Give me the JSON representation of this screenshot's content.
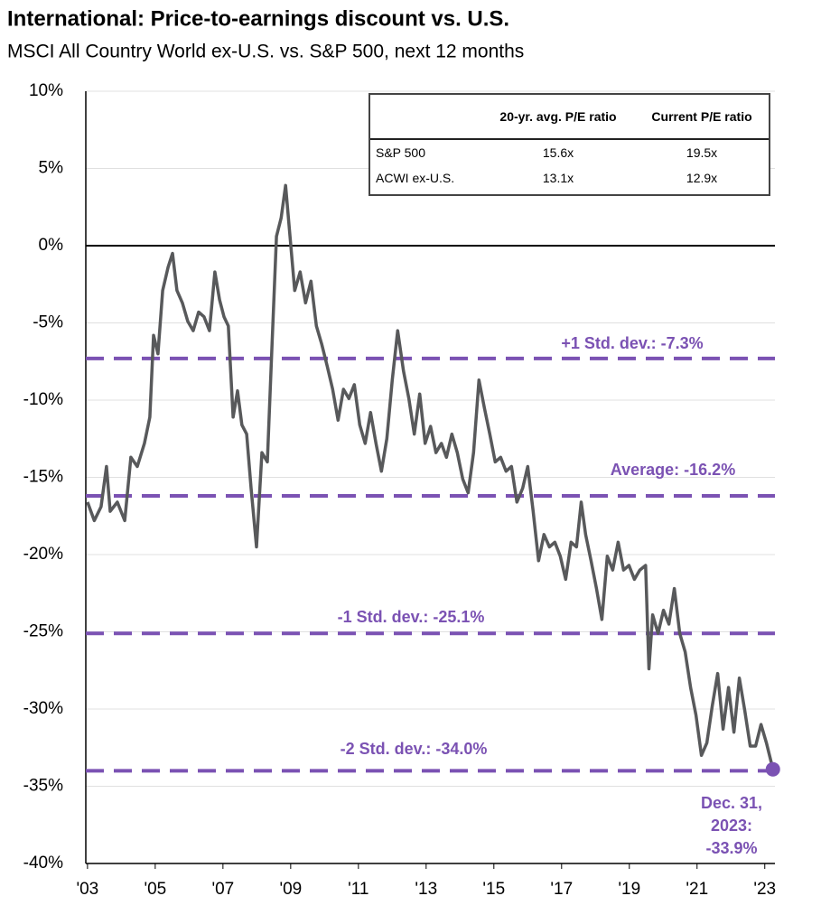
{
  "chart_data": {
    "type": "line",
    "title": "International: Price-to-earnings discount vs. U.S.",
    "subtitle": "MSCI All Country World ex-U.S. vs. S&P 500, next 12 months",
    "x": [
      2003.0,
      2003.2,
      2003.4,
      2003.56,
      2003.67,
      2003.88,
      2004.1,
      2004.28,
      2004.47,
      2004.68,
      2004.84,
      2004.95,
      2005.08,
      2005.22,
      2005.38,
      2005.51,
      2005.64,
      2005.8,
      2005.96,
      2006.12,
      2006.28,
      2006.44,
      2006.6,
      2006.76,
      2006.9,
      2007.03,
      2007.16,
      2007.3,
      2007.43,
      2007.56,
      2007.7,
      2007.83,
      2007.99,
      2008.15,
      2008.31,
      2008.45,
      2008.58,
      2008.72,
      2008.85,
      2008.98,
      2009.12,
      2009.28,
      2009.44,
      2009.6,
      2009.76,
      2009.92,
      2010.08,
      2010.24,
      2010.4,
      2010.56,
      2010.72,
      2010.88,
      2011.04,
      2011.2,
      2011.36,
      2011.52,
      2011.68,
      2011.84,
      2012.0,
      2012.16,
      2012.33,
      2012.49,
      2012.65,
      2012.81,
      2012.97,
      2013.13,
      2013.29,
      2013.45,
      2013.6,
      2013.76,
      2013.92,
      2014.08,
      2014.24,
      2014.4,
      2014.56,
      2014.72,
      2014.88,
      2015.04,
      2015.2,
      2015.36,
      2015.52,
      2015.68,
      2015.85,
      2016.0,
      2016.16,
      2016.32,
      2016.48,
      2016.64,
      2016.8,
      2016.96,
      2017.12,
      2017.28,
      2017.44,
      2017.58,
      2017.71,
      2017.87,
      2018.03,
      2018.19,
      2018.35,
      2018.51,
      2018.67,
      2018.83,
      2018.99,
      2019.15,
      2019.31,
      2019.48,
      2019.58,
      2019.69,
      2019.85,
      2020.01,
      2020.17,
      2020.33,
      2020.49,
      2020.65,
      2020.81,
      2020.97,
      2021.13,
      2021.29,
      2021.45,
      2021.61,
      2021.77,
      2021.93,
      2022.09,
      2022.25,
      2022.41,
      2022.57,
      2022.73,
      2022.89,
      2023.05,
      2023.24
    ],
    "series": [
      {
        "color": "#58595b",
        "values": [
          -16.6,
          -17.8,
          -16.9,
          -14.3,
          -17.2,
          -16.6,
          -17.8,
          -13.7,
          -14.3,
          -12.8,
          -11.1,
          -5.8,
          -7.0,
          -2.9,
          -1.4,
          -0.5,
          -2.9,
          -3.7,
          -4.9,
          -5.5,
          -4.3,
          -4.6,
          -5.5,
          -1.7,
          -3.5,
          -4.6,
          -5.2,
          -11.1,
          -9.4,
          -11.6,
          -12.2,
          -15.7,
          -19.5,
          -13.4,
          -14.0,
          -6.4,
          0.6,
          1.8,
          3.9,
          0.6,
          -2.9,
          -1.7,
          -3.7,
          -2.3,
          -5.2,
          -6.4,
          -7.8,
          -9.3,
          -11.3,
          -9.3,
          -9.9,
          -9.0,
          -11.6,
          -12.8,
          -10.8,
          -12.8,
          -14.6,
          -12.5,
          -8.7,
          -5.5,
          -8.1,
          -9.9,
          -12.2,
          -9.6,
          -12.8,
          -11.7,
          -13.4,
          -12.8,
          -13.7,
          -12.2,
          -13.4,
          -15.1,
          -16.0,
          -13.4,
          -8.7,
          -10.5,
          -12.2,
          -14.0,
          -13.7,
          -14.6,
          -14.3,
          -16.6,
          -15.7,
          -14.3,
          -17.2,
          -20.4,
          -18.7,
          -19.5,
          -19.2,
          -20.1,
          -21.6,
          -19.2,
          -19.5,
          -16.6,
          -18.7,
          -20.4,
          -22.2,
          -24.2,
          -20.1,
          -21.0,
          -19.2,
          -21.0,
          -20.7,
          -21.6,
          -21.0,
          -20.7,
          -27.4,
          -23.9,
          -25.1,
          -23.6,
          -24.5,
          -22.2,
          -25.1,
          -26.3,
          -28.6,
          -30.4,
          -33.0,
          -32.2,
          -29.8,
          -27.7,
          -31.3,
          -28.6,
          -31.5,
          -28.0,
          -30.1,
          -32.4,
          -32.4,
          -31.0,
          -32.2,
          -33.9
        ]
      }
    ],
    "reference_lines": [
      {
        "value": -7.3,
        "label": "+1 Std. dev.: -7.3%"
      },
      {
        "value": -16.2,
        "label": "Average: -16.2%"
      },
      {
        "value": -25.1,
        "label": "-1 Std. dev.: -25.1%"
      },
      {
        "value": -34.0,
        "label": "-2 Std. dev.: -34.0%"
      }
    ],
    "reference_color": "#7b52b3",
    "annotation": [
      "Dec. 31,",
      "2023:",
      "-33.9%"
    ],
    "xlim": [
      2002.95,
      2023.3
    ],
    "xticks": [
      {
        "value": 2003,
        "label": "'03"
      },
      {
        "value": 2005,
        "label": "'05"
      },
      {
        "value": 2007,
        "label": "'07"
      },
      {
        "value": 2009,
        "label": "'09"
      },
      {
        "value": 2011,
        "label": "'11"
      },
      {
        "value": 2013,
        "label": "'13"
      },
      {
        "value": 2015,
        "label": "'15"
      },
      {
        "value": 2017,
        "label": "'17"
      },
      {
        "value": 2019,
        "label": "'19"
      },
      {
        "value": 2021,
        "label": "'21"
      },
      {
        "value": 2023,
        "label": "'23"
      }
    ],
    "ylim": [
      -40,
      10
    ],
    "yticks": [
      {
        "value": 10,
        "label": "10%"
      },
      {
        "value": 5,
        "label": "5%"
      },
      {
        "value": 0,
        "label": "0%"
      },
      {
        "value": -5,
        "label": "-5%"
      },
      {
        "value": -10,
        "label": "-10%"
      },
      {
        "value": -15,
        "label": "-15%"
      },
      {
        "value": -20,
        "label": "-20%"
      },
      {
        "value": -25,
        "label": "-25%"
      },
      {
        "value": -30,
        "label": "-30%"
      },
      {
        "value": -35,
        "label": "-35%"
      },
      {
        "value": -40,
        "label": "-40%"
      }
    ],
    "grid": true,
    "table": {
      "columns": [
        "20-yr. avg. P/E ratio",
        "Current P/E ratio"
      ],
      "rows": [
        {
          "label": "S&P 500",
          "values": [
            "15.6x",
            "19.5x"
          ]
        },
        {
          "label": "ACWI ex-U.S.",
          "values": [
            "13.1x",
            "12.9x"
          ]
        }
      ]
    }
  }
}
